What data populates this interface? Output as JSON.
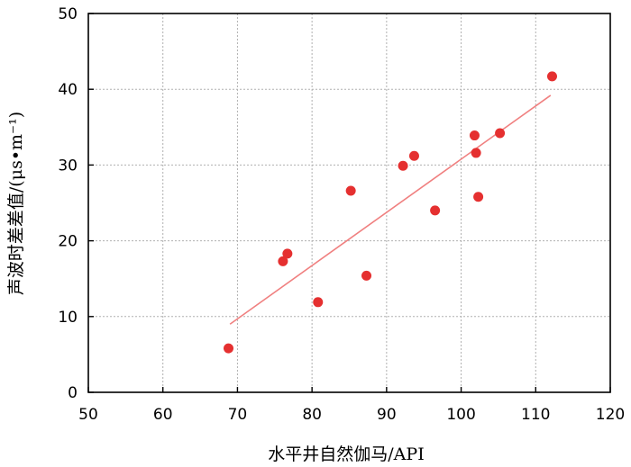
{
  "chart_data": {
    "type": "scatter",
    "xlabel": "水平井自然伽马/API",
    "ylabel": "声波时差差值/(μs•m⁻¹)",
    "xlim": [
      50,
      120
    ],
    "ylim": [
      0,
      50
    ],
    "x_ticks": [
      50,
      60,
      70,
      80,
      90,
      100,
      110,
      120
    ],
    "y_ticks": [
      0,
      10,
      20,
      30,
      40,
      50
    ],
    "grid": true,
    "series": [
      {
        "marker_color": "#e53030",
        "points": [
          {
            "x": 68.8,
            "y": 5.8
          },
          {
            "x": 76.1,
            "y": 17.3
          },
          {
            "x": 76.7,
            "y": 18.3
          },
          {
            "x": 80.8,
            "y": 11.9
          },
          {
            "x": 85.2,
            "y": 26.6
          },
          {
            "x": 87.3,
            "y": 15.4
          },
          {
            "x": 92.2,
            "y": 29.9
          },
          {
            "x": 93.7,
            "y": 31.2
          },
          {
            "x": 96.5,
            "y": 24.0
          },
          {
            "x": 101.8,
            "y": 33.9
          },
          {
            "x": 102.0,
            "y": 31.6
          },
          {
            "x": 102.3,
            "y": 25.8
          },
          {
            "x": 105.2,
            "y": 34.2
          },
          {
            "x": 112.2,
            "y": 41.7
          }
        ]
      }
    ],
    "trendline": {
      "color": "#f08080",
      "points": [
        {
          "x": 69.0,
          "y": 9.0
        },
        {
          "x": 112.0,
          "y": 39.2
        }
      ]
    }
  }
}
